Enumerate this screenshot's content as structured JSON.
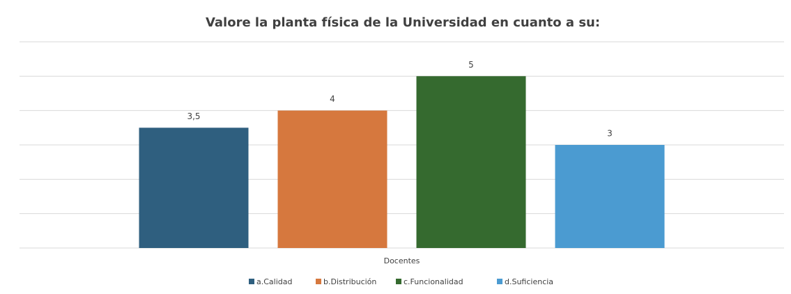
{
  "chart_data": {
    "type": "bar",
    "title": "Valore la planta física de la Universidad en cuanto a su:",
    "categories": [
      "Docentes"
    ],
    "series": [
      {
        "name": "a.Calidad",
        "color": "#2f5f7f",
        "values": [
          3.5
        ],
        "value_labels": [
          "3,5"
        ]
      },
      {
        "name": "b.Distribución",
        "color": "#d6783e",
        "values": [
          4
        ]
      },
      {
        "name": "c.Funcionalidad",
        "color": "#356a2f",
        "values": [
          5
        ]
      },
      {
        "name": "d.Suficiencia",
        "color": "#4b9bd1",
        "values": [
          3
        ]
      }
    ],
    "ylim": [
      0,
      6
    ],
    "yticks": [
      0,
      1,
      2,
      3,
      4,
      5,
      6
    ],
    "grid": true,
    "legend": "bottom"
  }
}
